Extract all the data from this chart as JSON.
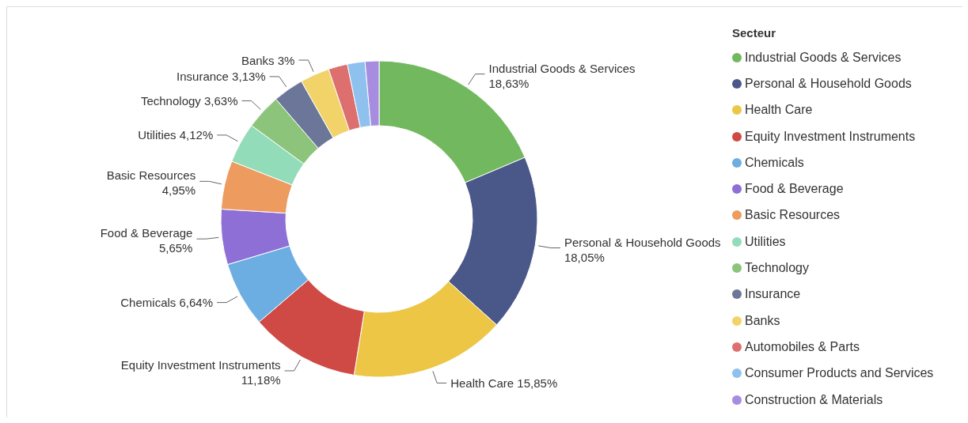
{
  "chart_data": {
    "type": "donut",
    "legend_title": "Secteur",
    "legend": "right",
    "categories": [
      "Industrial Goods & Services",
      "Personal & Household Goods",
      "Health Care",
      "Equity Investment Instruments",
      "Chemicals",
      "Food & Beverage",
      "Basic Resources",
      "Utilities",
      "Technology",
      "Insurance",
      "Banks",
      "Automobiles & Parts",
      "Consumer Products and Services",
      "Construction & Materials"
    ],
    "values": [
      18.63,
      18.05,
      15.85,
      11.18,
      6.64,
      5.65,
      4.95,
      4.12,
      3.63,
      3.13,
      3,
      1.95,
      1.8,
      1.42
    ],
    "value_labels": [
      "18,63%",
      "18,05%",
      "15,85%",
      "11,18%",
      "6,64%",
      "5,65%",
      "4,95%",
      "4,12%",
      "3,63%",
      "3,13%",
      "3%",
      null,
      null,
      null
    ],
    "colors": [
      "#72b85e",
      "#4a5889",
      "#ecc644",
      "#cf4a45",
      "#6daee2",
      "#8d6fd5",
      "#ed9b5f",
      "#93dcb9",
      "#8dc47b",
      "#6b7699",
      "#f1d36a",
      "#dd6f6f",
      "#8ec1ee",
      "#a78ddf"
    ]
  }
}
